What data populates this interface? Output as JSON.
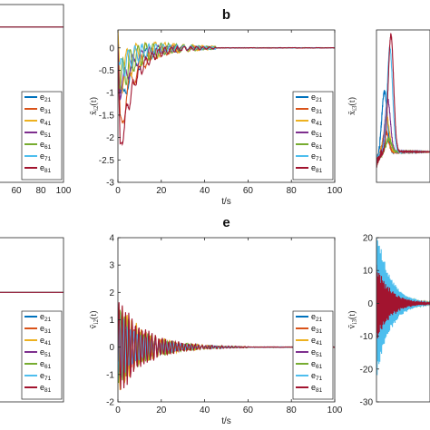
{
  "chart_data": [
    {
      "id": "p1",
      "type": "line",
      "panel_label": "",
      "xlabel": "",
      "ylabel": "",
      "xlim": [
        0,
        100
      ],
      "ylim": [
        -3,
        0.4
      ],
      "xticks": [],
      "xtick_labels": [
        "60",
        "80",
        "100"
      ],
      "yticks": [],
      "ytick_labels": [],
      "series_values": [
        0
      ],
      "legend_labels": [
        [
          "e",
          "21"
        ],
        [
          "e",
          "31"
        ],
        [
          "e",
          "41"
        ],
        [
          "e",
          "51"
        ],
        [
          "e",
          "61"
        ],
        [
          "e",
          "71"
        ],
        [
          "e",
          "81"
        ]
      ],
      "legend_position": "right",
      "grid": false
    },
    {
      "id": "p2",
      "type": "line",
      "panel_label": "b",
      "xlabel": "t/s",
      "ylabel": "x̃",
      "ylabel_sub": "i2",
      "ylabel_suffix": "(t)",
      "xlim": [
        0,
        100
      ],
      "ylim": [
        -3,
        0.4
      ],
      "xticks": [
        0,
        20,
        40,
        60,
        80,
        100
      ],
      "xtick_labels": [
        "0",
        "20",
        "40",
        "60",
        "80",
        "100"
      ],
      "yticks": [
        0,
        -0.5,
        -1,
        -1.5,
        -2,
        -2.5,
        -3
      ],
      "ytick_labels": [
        "0",
        "-0.5",
        "-1",
        "-1.5",
        "-2",
        "-2.5",
        "-3"
      ],
      "series_min": [
        -1.5,
        -2.1,
        -0.8,
        -1.1,
        -0.9,
        -0.6,
        -2.8
      ],
      "series_max": [
        0.2,
        0.25,
        0.35,
        0.15,
        0.3,
        0.2,
        0.15
      ],
      "settle": 45,
      "legend_labels": [
        [
          "e",
          "21"
        ],
        [
          "e",
          "31"
        ],
        [
          "e",
          "41"
        ],
        [
          "e",
          "51"
        ],
        [
          "e",
          "61"
        ],
        [
          "e",
          "71"
        ],
        [
          "e",
          "81"
        ]
      ],
      "legend_position": "right",
      "grid": false
    },
    {
      "id": "p3",
      "type": "line",
      "panel_label": "",
      "xlabel": "",
      "ylabel": "x̃",
      "ylabel_sub": "i3",
      "ylabel_suffix": "(t)",
      "xlim": [
        0,
        100
      ],
      "ylim": [
        -7,
        28
      ],
      "xticks": [],
      "xtick_labels": [],
      "yticks": [],
      "ytick_labels": [],
      "series_peak": [
        14,
        5,
        8,
        12,
        3,
        24,
        27
      ],
      "legend_position": "none",
      "grid": false
    },
    {
      "id": "p4",
      "type": "line",
      "panel_label": "",
      "xlabel": "",
      "ylabel": "",
      "xlim": [
        0,
        100
      ],
      "ylim": [
        -2,
        1
      ],
      "xticks": [],
      "xtick_labels": [],
      "yticks": [],
      "ytick_labels": [],
      "series_values": [
        0
      ],
      "legend_labels": [
        [
          "e",
          "21"
        ],
        [
          "e",
          "31"
        ],
        [
          "e",
          "41"
        ],
        [
          "e",
          "51"
        ],
        [
          "e",
          "61"
        ],
        [
          "e",
          "71"
        ],
        [
          "e",
          "81"
        ]
      ],
      "legend_position": "right",
      "grid": false
    },
    {
      "id": "p5",
      "type": "line",
      "panel_label": "e",
      "xlabel": "t/s",
      "ylabel": "ṽ",
      "ylabel_sub": "i2",
      "ylabel_suffix": "(t)",
      "xlim": [
        0,
        100
      ],
      "ylim": [
        -2,
        4
      ],
      "xticks": [
        0,
        20,
        40,
        60,
        80,
        100
      ],
      "xtick_labels": [
        "0",
        "20",
        "40",
        "60",
        "80",
        "100"
      ],
      "yticks": [
        4,
        3,
        2,
        1,
        0,
        -1,
        -2
      ],
      "ytick_labels": [
        "4",
        "3",
        "2",
        "1",
        "0",
        "-1",
        "-2"
      ],
      "series_amp": [
        1.0,
        1.2,
        1.6,
        0.9,
        1.5,
        1.2,
        1.8
      ],
      "settle": 60,
      "legend_labels": [
        [
          "e",
          "21"
        ],
        [
          "e",
          "31"
        ],
        [
          "e",
          "41"
        ],
        [
          "e",
          "51"
        ],
        [
          "e",
          "61"
        ],
        [
          "e",
          "71"
        ],
        [
          "e",
          "81"
        ]
      ],
      "legend_position": "right",
      "grid": false
    },
    {
      "id": "p6",
      "type": "line",
      "panel_label": "",
      "xlabel": "",
      "ylabel": "ṽ",
      "ylabel_sub": "i3",
      "ylabel_suffix": "(t)",
      "xlim": [
        0,
        100
      ],
      "ylim": [
        -30,
        20
      ],
      "xticks": [],
      "xtick_labels": [],
      "yticks": [
        20,
        10,
        0,
        -10,
        -20,
        -30
      ],
      "ytick_labels": [
        "20",
        "10",
        "0",
        "-10",
        "-20",
        "-30"
      ],
      "series_amp": [
        10,
        12,
        14,
        9,
        18,
        22,
        11
      ],
      "legend_position": "none",
      "grid": false
    }
  ],
  "series_colors": [
    "#0072BD",
    "#D95319",
    "#EDB120",
    "#7E2F8E",
    "#77AC30",
    "#4DBEEE",
    "#A2142F"
  ],
  "series_legend": [
    "e21",
    "e31",
    "e41",
    "e51",
    "e61",
    "e71",
    "e81"
  ]
}
